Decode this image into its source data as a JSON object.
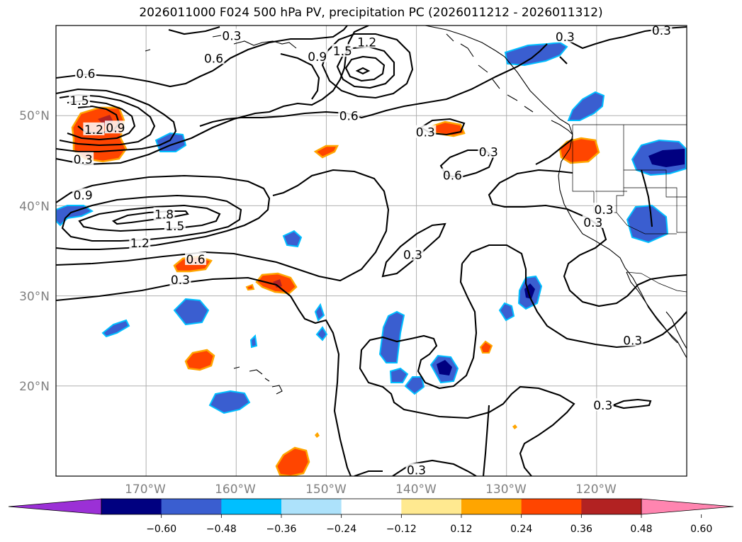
{
  "title": "2026011000 F024 500 hPa PV, precipitation PC (2026011212 - 2026011312)",
  "map": {
    "lon_range": [
      -180,
      -110
    ],
    "lat_range": [
      10,
      60
    ],
    "lon_labels": [
      "170°W",
      "160°W",
      "150°W",
      "140°W",
      "130°W",
      "120°W"
    ],
    "lat_labels": [
      "50°N",
      "40°N",
      "30°N",
      "20°N"
    ],
    "gridlines": true,
    "coastlines": true,
    "borders": true
  },
  "contours": {
    "variable": "500 hPa PV",
    "levels": [
      "0.3",
      "0.6",
      "0.9",
      "1.2",
      "1.5",
      "1.8"
    ],
    "labels": [
      {
        "text": "0.6",
        "lon": -176.7,
        "lat": 54.5
      },
      {
        "text": "1.5",
        "lon": -177.4,
        "lat": 51.5
      },
      {
        "text": "1.2",
        "lon": -175.8,
        "lat": 48.3
      },
      {
        "text": "0.9",
        "lon": -173.4,
        "lat": 48.5
      },
      {
        "text": "0.3",
        "lon": -177,
        "lat": 45
      },
      {
        "text": "0.9",
        "lon": -151,
        "lat": 56.4
      },
      {
        "text": "1.5",
        "lon": -148.2,
        "lat": 57
      },
      {
        "text": "1.2",
        "lon": -145.5,
        "lat": 58
      },
      {
        "text": "0.6",
        "lon": -147.5,
        "lat": 49.8
      },
      {
        "text": "0.3",
        "lon": -139,
        "lat": 48
      },
      {
        "text": "0.6",
        "lon": -136,
        "lat": 43.2
      },
      {
        "text": "0.3",
        "lon": -132,
        "lat": 45.8
      },
      {
        "text": "0.9",
        "lon": -177,
        "lat": 41
      },
      {
        "text": "1.8",
        "lon": -168,
        "lat": 38.9
      },
      {
        "text": "1.5",
        "lon": -166.8,
        "lat": 37.6
      },
      {
        "text": "1.2",
        "lon": -170.7,
        "lat": 35.7
      },
      {
        "text": "0.6",
        "lon": -164.5,
        "lat": 33.9
      },
      {
        "text": "0.3",
        "lon": -166.2,
        "lat": 31.6
      },
      {
        "text": "0.3",
        "lon": -140.4,
        "lat": 34.4
      },
      {
        "text": "0.3",
        "lon": -120.4,
        "lat": 38
      },
      {
        "text": "0.3",
        "lon": -119.2,
        "lat": 39.4
      },
      {
        "text": "0.3",
        "lon": -116,
        "lat": 24.9
      },
      {
        "text": "0.3",
        "lon": -119.3,
        "lat": 17.7
      },
      {
        "text": "0.3",
        "lon": -140,
        "lat": 10.5
      },
      {
        "text": "0.3",
        "lon": -160.5,
        "lat": 58.7
      },
      {
        "text": "0.6",
        "lon": -162.5,
        "lat": 56.2
      },
      {
        "text": "0.3",
        "lon": -123.5,
        "lat": 58.6
      },
      {
        "text": "0.3",
        "lon": -112.8,
        "lat": 59.3
      }
    ]
  },
  "shading": {
    "variable": "precipitation PC",
    "colorbar": {
      "ticks": [
        "−0.60",
        "−0.48",
        "−0.36",
        "−0.24",
        "−0.12",
        "0.12",
        "0.24",
        "0.36",
        "0.48",
        "0.60"
      ],
      "colors": [
        "#9b30d6",
        "#000080",
        "#3a5ed0",
        "#00bfff",
        "#ade2fb",
        "#ffffff",
        "#ffe990",
        "#ffa500",
        "#ff4500",
        "#b22222",
        "#ff85b0"
      ],
      "extend": "both"
    }
  }
}
